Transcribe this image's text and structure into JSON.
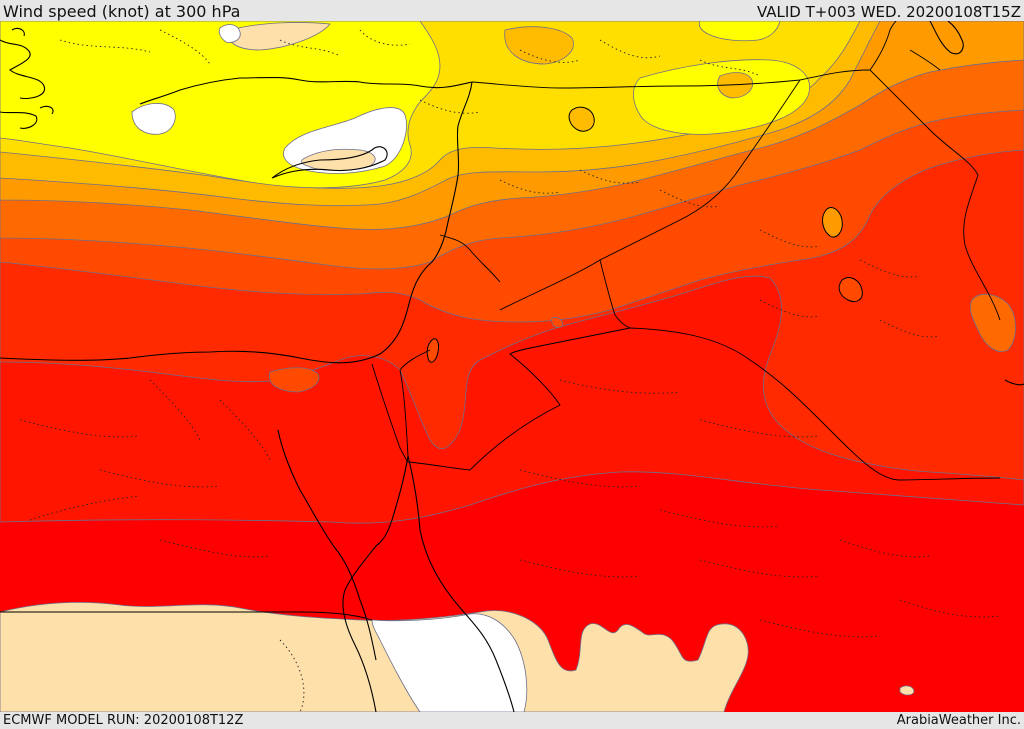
{
  "header": {
    "title": "Wind speed (knot) at 300 hPa",
    "valid_time": "VALID T+003 WED. 20200108T15Z"
  },
  "footer": {
    "model_run": "ECMWF MODEL RUN: 20200108T12Z",
    "credit": "ArabiaWeather Inc."
  },
  "map": {
    "variable": "wind speed at 300 hPa",
    "unit": "knot",
    "colors": {
      "calm_white": "#ffffff",
      "pale_tan": "#fde0aa",
      "yellow": "#ffff00",
      "gold": "#ffdf00",
      "amber": "#ffbb00",
      "orange": "#ff9b00",
      "dark_orange": "#ff6a00",
      "red_orange": "#ff4a00",
      "orange_red": "#ff2a00",
      "red": "#ff1500",
      "bright_red": "#ff0000"
    }
  }
}
